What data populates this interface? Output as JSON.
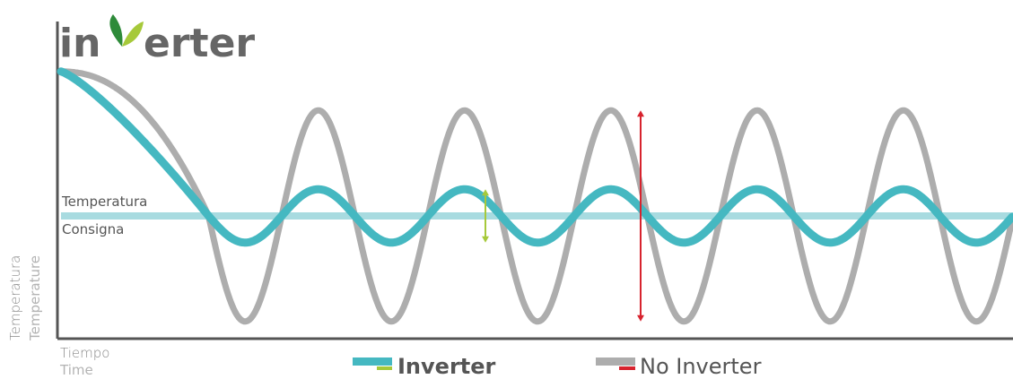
{
  "logo": {
    "text_prefix": "in",
    "text_suffix": "erter"
  },
  "chart_data": {
    "type": "line",
    "xlabel": "Tiempo",
    "xlabel_alt": "Time",
    "ylabel": "Temperatura",
    "ylabel_alt": "Temperature",
    "reference_line": {
      "label_top": "Temperatura",
      "label_bottom": "Consigna",
      "y": 0
    },
    "grid": false,
    "series": [
      {
        "name": "Inverter",
        "color": "#45b8c1",
        "accent_color": "#a6c93a",
        "start_value": 2.6,
        "oscillation_amplitude": 0.48,
        "oscillation_periods": 5.5
      },
      {
        "name": "No Inverter",
        "color": "#adadad",
        "accent_color": "#d7232e",
        "start_value": 2.6,
        "oscillation_amplitude": 1.9,
        "oscillation_periods": 5.5
      }
    ],
    "legend": {
      "placement": "bottom-center"
    },
    "colors": {
      "axis": "#555555",
      "reference": "#a8dbe0"
    }
  }
}
